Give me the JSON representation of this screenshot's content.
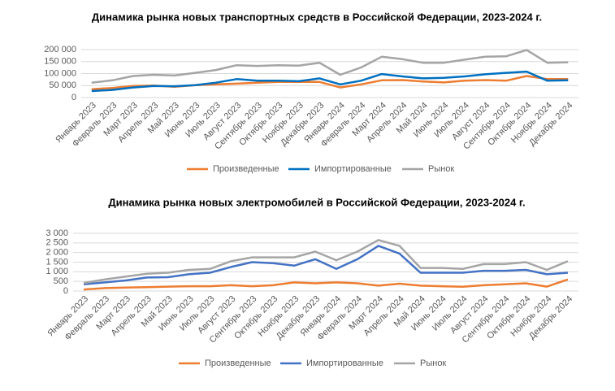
{
  "chart_data": [
    {
      "type": "line",
      "title": "Динамика рынка новых транспортных средств в Российской Федерации, 2023-2024 г.",
      "categories": [
        "Январь 2023",
        "Февраль 2023",
        "Март 2023",
        "Апрель 2023",
        "Май 2023",
        "Июнь 2023",
        "Июль 2023",
        "Август 2023",
        "Сентябрь 2023",
        "Октябрь 2023",
        "Ноябрь 2023",
        "Декабрь 2023",
        "Январь 2024",
        "Февраль 2024",
        "Март 2024",
        "Апрель 2024",
        "Май 2024",
        "Июнь 2024",
        "Июль 2024",
        "Август 2024",
        "Сентябрь 2024",
        "Октябрь 2024",
        "Ноябрь 2024",
        "Декабрь 2024"
      ],
      "series": [
        {
          "name": "Произведенные",
          "color": "#ed7d31",
          "values": [
            35000,
            40000,
            48000,
            50000,
            45000,
            52000,
            55000,
            58000,
            62000,
            65000,
            65000,
            65000,
            42000,
            55000,
            72000,
            73000,
            67000,
            63000,
            70000,
            73000,
            70000,
            90000,
            77000,
            77000
          ]
        },
        {
          "name": "Импортированные",
          "color": "#0070c0",
          "values": [
            27000,
            32000,
            42000,
            48000,
            47000,
            52000,
            62000,
            77000,
            70000,
            70000,
            68000,
            80000,
            55000,
            70000,
            98000,
            88000,
            80000,
            82000,
            88000,
            97000,
            103000,
            108000,
            70000,
            72000
          ]
        },
        {
          "name": "Рынок",
          "color": "#a5a5a5",
          "values": [
            62000,
            72000,
            90000,
            95000,
            92000,
            103000,
            115000,
            135000,
            132000,
            135000,
            133000,
            145000,
            95000,
            125000,
            170000,
            160000,
            145000,
            145000,
            158000,
            170000,
            172000,
            198000,
            145000,
            147000
          ]
        }
      ],
      "ylim": [
        0,
        200000
      ],
      "yticks": [
        0,
        {
          "value": 50000,
          "label": "50 000"
        },
        {
          "value": 100000,
          "label": "100 000"
        },
        {
          "value": 150000,
          "label": "150 000"
        },
        {
          "value": 200000,
          "label": "200 000"
        }
      ],
      "grid": true,
      "legend": "bottom"
    },
    {
      "type": "line",
      "title": "Динамика рынка новых электромобилей в Российской Федерации, 2023-2024 г.",
      "categories": [
        "Январь 2023",
        "Февраль 2023",
        "Март 2023",
        "Апрель 2023",
        "Май 2023",
        "Июнь 2023",
        "Июль 2023",
        "Август 2023",
        "Сентябрь 2023",
        "Октябрь 2023",
        "Ноябрь 2023",
        "Декабрь 2023",
        "Январь 2024",
        "Февраль 2024",
        "Март 2024",
        "Апрель 2024",
        "Май 2024",
        "Июнь 2024",
        "Июль 2024",
        "Август 2024",
        "Сентябрь 2024",
        "Октябрь 2024",
        "Ноябрь 2024",
        "Декабрь 2024"
      ],
      "series": [
        {
          "name": "Произведенные",
          "color": "#ed7d31",
          "values": [
            80,
            150,
            180,
            200,
            230,
            250,
            250,
            300,
            250,
            300,
            450,
            400,
            450,
            400,
            280,
            380,
            280,
            250,
            220,
            300,
            350,
            400,
            230,
            600
          ]
        },
        {
          "name": "Импортированные",
          "color": "#4472c4",
          "values": [
            350,
            450,
            550,
            700,
            720,
            870,
            950,
            1250,
            1500,
            1450,
            1320,
            1650,
            1150,
            1650,
            2350,
            1950,
            950,
            950,
            950,
            1050,
            1050,
            1100,
            870,
            950
          ]
        },
        {
          "name": "Рынок",
          "color": "#a5a5a5",
          "values": [
            420,
            600,
            750,
            900,
            950,
            1100,
            1150,
            1550,
            1750,
            1750,
            1750,
            2050,
            1600,
            2050,
            2650,
            2350,
            1200,
            1200,
            1150,
            1400,
            1400,
            1500,
            1100,
            1550
          ]
        }
      ],
      "ylim": [
        0,
        3000
      ],
      "yticks": [
        0,
        500,
        {
          "value": 1000,
          "label": "1 000"
        },
        {
          "value": 1500,
          "label": "1 500"
        },
        {
          "value": 2000,
          "label": "2 000"
        },
        {
          "value": 2500,
          "label": "2 500"
        },
        {
          "value": 3000,
          "label": "3 000"
        }
      ],
      "grid": true,
      "legend": "bottom"
    }
  ]
}
